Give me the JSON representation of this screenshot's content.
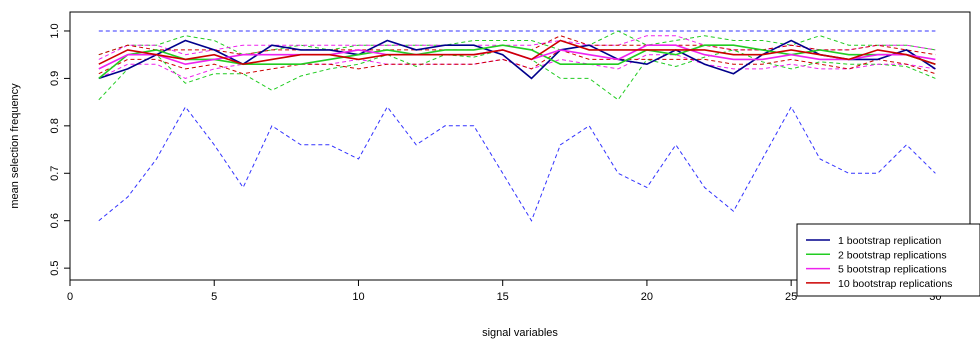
{
  "chart_data": {
    "type": "line",
    "xlabel": "signal variables",
    "ylabel": "mean selection frequency",
    "xlim": [
      0,
      31.2
    ],
    "ylim": [
      0.475,
      1.04
    ],
    "xticks": [
      0,
      5,
      10,
      15,
      20,
      25,
      30
    ],
    "yticks": [
      0.5,
      0.6,
      0.7,
      0.8,
      0.9,
      1.0
    ],
    "ytick_labels": [
      "0.5",
      "0.6",
      "0.7",
      "0.8",
      "0.9",
      "1.0"
    ],
    "legend_position": "bottom-right",
    "grid": false,
    "x": [
      1,
      2,
      3,
      4,
      5,
      6,
      7,
      8,
      9,
      10,
      11,
      12,
      13,
      14,
      15,
      16,
      17,
      18,
      19,
      20,
      21,
      22,
      23,
      24,
      25,
      26,
      27,
      28,
      29,
      30
    ],
    "series": [
      {
        "name": "1 bootstrap replication",
        "color": "#00008B",
        "style": "solid",
        "values": [
          0.9,
          0.92,
          0.95,
          0.98,
          0.96,
          0.93,
          0.97,
          0.96,
          0.96,
          0.95,
          0.98,
          0.96,
          0.97,
          0.97,
          0.95,
          0.9,
          0.96,
          0.97,
          0.94,
          0.93,
          0.96,
          0.93,
          0.91,
          0.95,
          0.98,
          0.95,
          0.94,
          0.94,
          0.96,
          0.92
        ]
      },
      {
        "name": "1 bootstrap replication upper",
        "color": "#3333FF",
        "style": "dashed",
        "values": [
          1.0,
          1.0,
          1.0,
          1.0,
          1.0,
          1.0,
          1.0,
          1.0,
          1.0,
          1.0,
          1.0,
          1.0,
          1.0,
          1.0,
          1.0,
          1.0,
          1.0,
          1.0,
          1.0,
          1.0,
          1.0,
          1.0,
          1.0,
          1.0,
          1.0,
          1.0,
          1.0,
          1.0,
          1.0,
          1.0
        ]
      },
      {
        "name": "1 bootstrap replication lower",
        "color": "#3333FF",
        "style": "dashed",
        "values": [
          0.6,
          0.65,
          0.73,
          0.84,
          0.76,
          0.67,
          0.8,
          0.76,
          0.76,
          0.73,
          0.84,
          0.76,
          0.8,
          0.8,
          0.7,
          0.6,
          0.76,
          0.8,
          0.7,
          0.67,
          0.76,
          0.67,
          0.62,
          0.73,
          0.84,
          0.73,
          0.7,
          0.7,
          0.76,
          0.7
        ]
      },
      {
        "name": "2 bootstrap replications",
        "color": "#22CC22",
        "style": "solid",
        "values": [
          0.9,
          0.95,
          0.96,
          0.94,
          0.94,
          0.93,
          0.93,
          0.93,
          0.94,
          0.95,
          0.96,
          0.95,
          0.96,
          0.96,
          0.97,
          0.96,
          0.93,
          0.93,
          0.93,
          0.96,
          0.95,
          0.97,
          0.97,
          0.96,
          0.95,
          0.96,
          0.95,
          0.95,
          0.95,
          0.93
        ]
      },
      {
        "name": "2 bootstrap replications upper",
        "color": "#22CC22",
        "style": "dashed",
        "values": [
          0.95,
          0.97,
          0.97,
          0.99,
          0.98,
          0.95,
          0.96,
          0.97,
          0.96,
          0.97,
          0.97,
          0.97,
          0.97,
          0.98,
          0.98,
          0.98,
          0.96,
          0.97,
          1.0,
          0.97,
          0.98,
          0.99,
          0.98,
          0.98,
          0.97,
          0.99,
          0.97,
          0.97,
          0.97,
          0.96
        ]
      },
      {
        "name": "2 bootstrap replications lower",
        "color": "#22CC22",
        "style": "dashed",
        "values": [
          0.855,
          0.92,
          0.95,
          0.89,
          0.91,
          0.91,
          0.875,
          0.905,
          0.92,
          0.93,
          0.95,
          0.925,
          0.95,
          0.945,
          0.96,
          0.94,
          0.9,
          0.9,
          0.855,
          0.94,
          0.925,
          0.945,
          0.96,
          0.935,
          0.92,
          0.935,
          0.93,
          0.93,
          0.925,
          0.9
        ]
      },
      {
        "name": "5 bootstrap replications",
        "color": "#EE22EE",
        "style": "solid",
        "values": [
          0.92,
          0.95,
          0.95,
          0.93,
          0.94,
          0.95,
          0.95,
          0.95,
          0.95,
          0.96,
          0.95,
          0.95,
          0.95,
          0.95,
          0.96,
          0.94,
          0.96,
          0.95,
          0.94,
          0.97,
          0.97,
          0.95,
          0.94,
          0.94,
          0.95,
          0.94,
          0.94,
          0.95,
          0.95,
          0.94
        ]
      },
      {
        "name": "5 bootstrap replications upper",
        "color": "#EE22EE",
        "style": "dashed",
        "values": [
          0.94,
          0.97,
          0.97,
          0.95,
          0.96,
          0.97,
          0.97,
          0.97,
          0.97,
          0.97,
          0.97,
          0.97,
          0.97,
          0.97,
          0.97,
          0.97,
          0.98,
          0.97,
          0.97,
          0.99,
          0.99,
          0.97,
          0.96,
          0.96,
          0.97,
          0.96,
          0.96,
          0.97,
          0.97,
          0.96
        ]
      },
      {
        "name": "5 bootstrap replications lower",
        "color": "#EE22EE",
        "style": "dashed",
        "values": [
          0.9,
          0.93,
          0.93,
          0.9,
          0.92,
          0.93,
          0.93,
          0.93,
          0.93,
          0.94,
          0.93,
          0.93,
          0.93,
          0.93,
          0.94,
          0.92,
          0.94,
          0.93,
          0.92,
          0.95,
          0.95,
          0.93,
          0.92,
          0.92,
          0.93,
          0.92,
          0.92,
          0.93,
          0.93,
          0.92
        ]
      },
      {
        "name": "10 bootstrap replications",
        "color": "#CC0000",
        "style": "solid",
        "values": [
          0.93,
          0.96,
          0.95,
          0.94,
          0.95,
          0.93,
          0.94,
          0.95,
          0.95,
          0.94,
          0.95,
          0.95,
          0.95,
          0.95,
          0.96,
          0.94,
          0.98,
          0.96,
          0.96,
          0.96,
          0.96,
          0.96,
          0.95,
          0.95,
          0.96,
          0.95,
          0.94,
          0.96,
          0.95,
          0.93
        ]
      },
      {
        "name": "10 bootstrap replications upper",
        "color": "#CC0000",
        "style": "dashed",
        "values": [
          0.95,
          0.97,
          0.96,
          0.96,
          0.96,
          0.95,
          0.96,
          0.96,
          0.96,
          0.96,
          0.96,
          0.96,
          0.96,
          0.96,
          0.97,
          0.96,
          0.99,
          0.97,
          0.97,
          0.97,
          0.97,
          0.97,
          0.96,
          0.96,
          0.97,
          0.96,
          0.96,
          0.97,
          0.96,
          0.95
        ]
      },
      {
        "name": "10 bootstrap replications lower",
        "color": "#CC0000",
        "style": "dashed",
        "values": [
          0.91,
          0.94,
          0.94,
          0.92,
          0.93,
          0.91,
          0.92,
          0.93,
          0.93,
          0.92,
          0.93,
          0.93,
          0.93,
          0.93,
          0.94,
          0.92,
          0.96,
          0.94,
          0.94,
          0.94,
          0.94,
          0.94,
          0.93,
          0.93,
          0.94,
          0.93,
          0.92,
          0.94,
          0.93,
          0.91
        ]
      }
    ],
    "legend": [
      {
        "label": "1 bootstrap replication",
        "color": "#00008B"
      },
      {
        "label": "2 bootstrap replications",
        "color": "#22CC22"
      },
      {
        "label": "5 bootstrap replications",
        "color": "#EE22EE"
      },
      {
        "label": "10 bootstrap replications",
        "color": "#CC0000"
      }
    ]
  }
}
